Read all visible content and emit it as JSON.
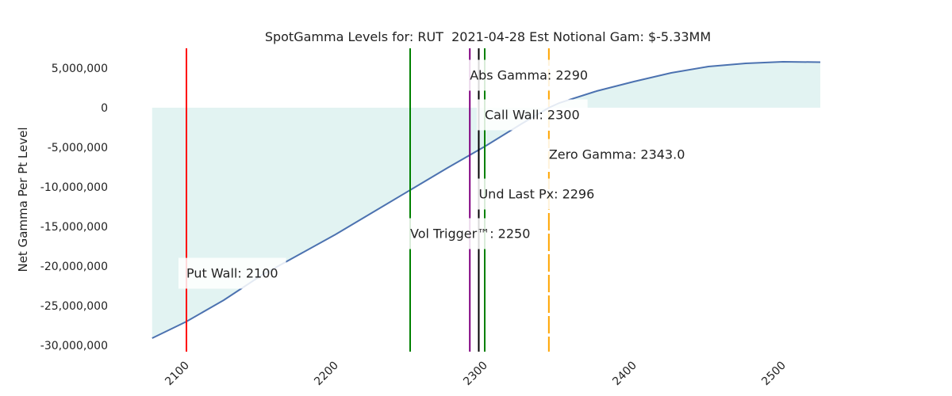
{
  "chart_data": {
    "type": "line",
    "title": "SpotGamma Levels for: RUT  2021-04-28 Est Notional Gam: $-5.33MM",
    "y_label": "Net Gamma Per Pt Level",
    "x": [
      2077,
      2100,
      2125,
      2150,
      2175,
      2200,
      2225,
      2250,
      2275,
      2300,
      2325,
      2343,
      2350,
      2375,
      2400,
      2425,
      2450,
      2475,
      2500,
      2525
    ],
    "series": [
      {
        "name": "Net Gamma",
        "color": "#4c72b0",
        "values": [
          -29100000,
          -27000000,
          -24300000,
          -21200000,
          -18600000,
          -16000000,
          -13200000,
          -10400000,
          -7600000,
          -4900000,
          -2000000,
          0,
          600000,
          2100000,
          3300000,
          4400000,
          5200000,
          5600000,
          5800000,
          5750000
        ]
      }
    ],
    "fill_color": "#e2f3f2",
    "xlim": [
      2050,
      2550
    ],
    "xticks": [
      2100,
      2200,
      2300,
      2400,
      2500
    ],
    "ylim": [
      -30500000,
      7500000
    ],
    "yticks": [
      {
        "value": -30000000,
        "label": "-30,000,000"
      },
      {
        "value": -25000000,
        "label": "-25,000,000"
      },
      {
        "value": -20000000,
        "label": "-20,000,000"
      },
      {
        "value": -15000000,
        "label": "-15,000,000"
      },
      {
        "value": -10000000,
        "label": "-10,000,000"
      },
      {
        "value": -5000000,
        "label": "-5,000,000"
      },
      0,
      {
        "value": 5000000,
        "label": "5,000,000"
      }
    ],
    "levels": [
      {
        "label": "Abs Gamma: 2290",
        "value": 2290,
        "color": "#800080",
        "text_color": "#800080"
      },
      {
        "label": "Call Wall: 2300",
        "value": 2300,
        "color": "#008000",
        "text_color": "#008000"
      },
      {
        "label": "Zero Gamma: 2343.0",
        "value": 2343.0,
        "color": "#ffa500",
        "text_color": "#ffa500",
        "dashed": true
      },
      {
        "label": "Und Last Px: 2296",
        "value": 2296,
        "color": "#000000",
        "text_color": "#000000"
      },
      {
        "label": "Vol Trigger™: 2250",
        "value": 2250,
        "color": "#008000",
        "text_color": "#0000ff"
      },
      {
        "label": "Put Wall: 2100",
        "value": 2100,
        "color": "#ff0000",
        "text_color": "#ff0000"
      }
    ]
  }
}
